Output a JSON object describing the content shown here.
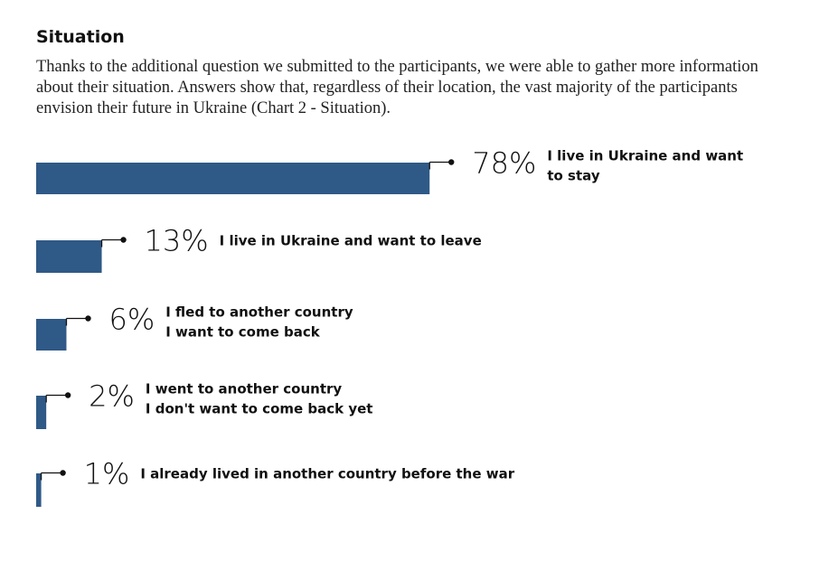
{
  "heading": "Situation",
  "intro": "Thanks to the additional question we submitted to the participants, we were able to gather more information about their situation. Answers show that, regardless of their location, the vast majority of the participants envision their future in Ukraine (Chart 2 - Situation).",
  "chart_data": {
    "type": "bar",
    "orientation": "horizontal",
    "grid": false,
    "legend": "none",
    "bar_color": "#2f5987",
    "categories": [
      [
        "I live in Ukraine and want",
        "to stay"
      ],
      [
        "I live in Ukraine and want to leave"
      ],
      [
        "I fled to another country",
        "I want to come back"
      ],
      [
        "I went to another country",
        "I don't want to come back yet"
      ],
      [
        "I already lived in another country before the war"
      ]
    ],
    "values": [
      78,
      13,
      6,
      2,
      1
    ],
    "value_labels": [
      "78%",
      "13%",
      "6%",
      "2%",
      "1%"
    ],
    "xlim": [
      0,
      100
    ]
  }
}
